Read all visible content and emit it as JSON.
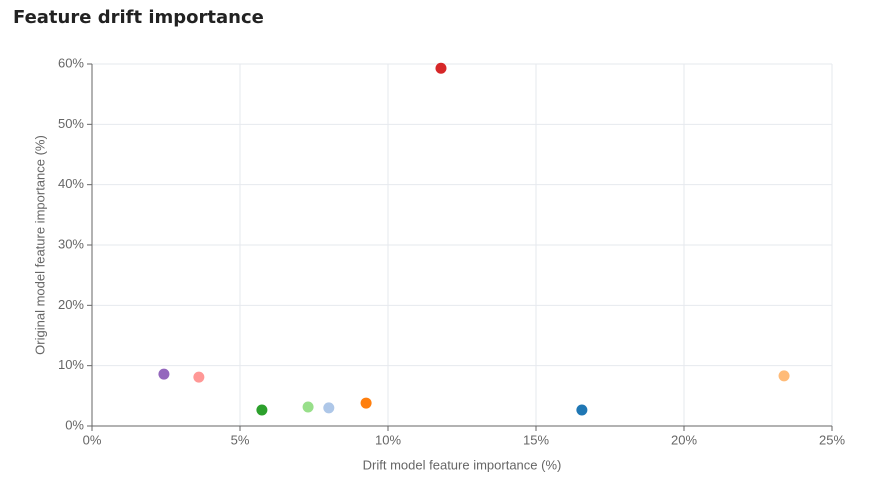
{
  "chart_data": {
    "type": "scatter",
    "title": "Feature drift importance",
    "x_label": "Drift model feature importance (%)",
    "y_label": "Original model feature importance (%)",
    "x": [
      2.43,
      3.61,
      5.74,
      7.3,
      8.0,
      9.26,
      11.79,
      16.55,
      23.38
    ],
    "values": [
      8.6,
      8.1,
      2.65,
      3.15,
      3.0,
      3.8,
      59.3,
      2.65,
      8.3
    ],
    "colors": [
      "#9467bd",
      "#ff9896",
      "#2ca02c",
      "#98df8a",
      "#aec7e8",
      "#ff7f0e",
      "#d62728",
      "#1f77b4",
      "#ffbb78"
    ],
    "xlim": [
      0,
      25
    ],
    "xticks": [
      {
        "value": 0,
        "label": "0%"
      },
      {
        "value": 5,
        "label": "5%"
      },
      {
        "value": 10,
        "label": "10%"
      },
      {
        "value": 15,
        "label": "15%"
      },
      {
        "value": 20,
        "label": "20%"
      },
      {
        "value": 25,
        "label": "25%"
      }
    ],
    "ylim": [
      0,
      60
    ],
    "yticks": [
      {
        "value": 0,
        "label": "0%"
      },
      {
        "value": 10,
        "label": "10%"
      },
      {
        "value": 20,
        "label": "20%"
      },
      {
        "value": 30,
        "label": "30%"
      },
      {
        "value": 40,
        "label": "40%"
      },
      {
        "value": 50,
        "label": "50%"
      },
      {
        "value": 60,
        "label": "60%"
      }
    ],
    "grid": true
  }
}
